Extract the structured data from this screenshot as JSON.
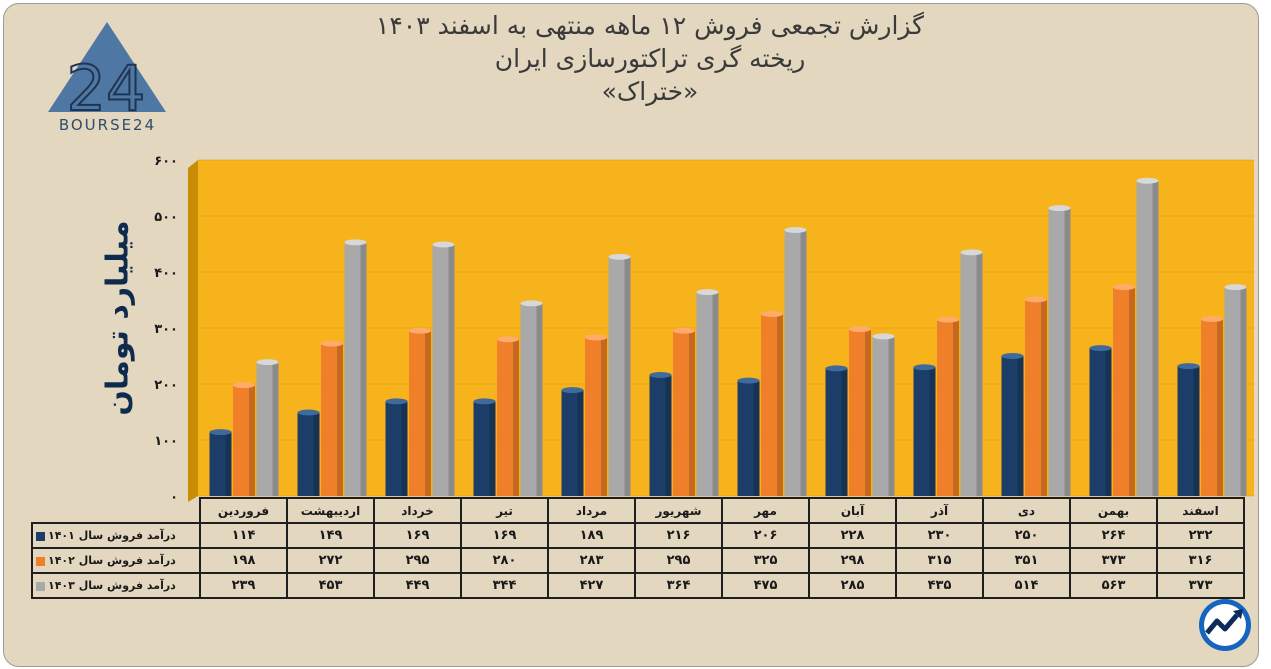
{
  "title": {
    "line1": "گزارش تجمعی فروش ۱۲ ماهه منتهی به اسفند ۱۴۰۳",
    "line2": "ریخته گری تراکتورسازی ایران",
    "line3": "«ختراک»"
  },
  "logo": {
    "text": "BOURSE24",
    "mark": "24"
  },
  "colors": {
    "s1401": "#1c3d68",
    "s1402": "#f07f2a",
    "s1403": "#a9a9a9",
    "plot_bg": "#f6b31b"
  },
  "chart_data": {
    "type": "bar",
    "ylabel": "میلیارد تومان",
    "ylim": [
      0,
      600
    ],
    "yticks": [
      "۰",
      "۱۰۰",
      "۲۰۰",
      "۳۰۰",
      "۴۰۰",
      "۵۰۰",
      "۶۰۰"
    ],
    "categories": [
      "فروردین",
      "اردیبهشت",
      "خرداد",
      "تیر",
      "مرداد",
      "شهریور",
      "مهر",
      "آبان",
      "آذر",
      "دی",
      "بهمن",
      "اسفند"
    ],
    "series": [
      {
        "name": "درآمد فروش سال ۱۴۰۱",
        "values": [
          114,
          149,
          169,
          169,
          189,
          216,
          206,
          228,
          230,
          250,
          264,
          232
        ],
        "labels": [
          "۱۱۴",
          "۱۴۹",
          "۱۶۹",
          "۱۶۹",
          "۱۸۹",
          "۲۱۶",
          "۲۰۶",
          "۲۲۸",
          "۲۳۰",
          "۲۵۰",
          "۲۶۴",
          "۲۳۲"
        ]
      },
      {
        "name": "درآمد فروش سال ۱۴۰۲",
        "values": [
          198,
          272,
          295,
          280,
          283,
          295,
          325,
          298,
          315,
          351,
          373,
          316
        ],
        "labels": [
          "۱۹۸",
          "۲۷۲",
          "۲۹۵",
          "۲۸۰",
          "۲۸۳",
          "۲۹۵",
          "۳۲۵",
          "۲۹۸",
          "۳۱۵",
          "۳۵۱",
          "۳۷۳",
          "۳۱۶"
        ]
      },
      {
        "name": "درآمد فروش سال ۱۴۰۳",
        "values": [
          239,
          453,
          449,
          344,
          427,
          364,
          475,
          285,
          435,
          514,
          563,
          373
        ],
        "labels": [
          "۲۳۹",
          "۴۵۳",
          "۴۴۹",
          "۳۴۴",
          "۴۲۷",
          "۳۶۴",
          "۴۷۵",
          "۲۸۵",
          "۴۳۵",
          "۵۱۴",
          "۵۶۳",
          "۳۷۳"
        ]
      }
    ]
  }
}
